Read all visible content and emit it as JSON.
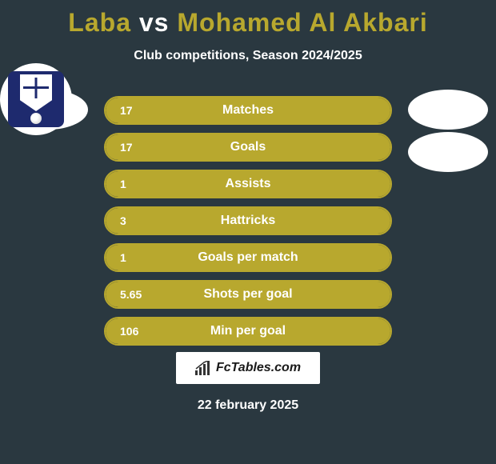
{
  "header": {
    "player1": "Laba",
    "vs": "vs",
    "player2": "Mohamed Al Akbari",
    "subtitle": "Club competitions, Season 2024/2025"
  },
  "colors": {
    "accent": "#b8a82e",
    "background": "#2a3840",
    "text": "#ffffff",
    "club_badge": "#1e2a6e"
  },
  "stats": [
    {
      "label": "Matches",
      "value": "17",
      "fill_pct": 100
    },
    {
      "label": "Goals",
      "value": "17",
      "fill_pct": 100
    },
    {
      "label": "Assists",
      "value": "1",
      "fill_pct": 100
    },
    {
      "label": "Hattricks",
      "value": "3",
      "fill_pct": 100
    },
    {
      "label": "Goals per match",
      "value": "1",
      "fill_pct": 100
    },
    {
      "label": "Shots per goal",
      "value": "5.65",
      "fill_pct": 100
    },
    {
      "label": "Min per goal",
      "value": "106",
      "fill_pct": 100
    }
  ],
  "footer": {
    "site": "FcTables.com",
    "date": "22 february 2025"
  }
}
